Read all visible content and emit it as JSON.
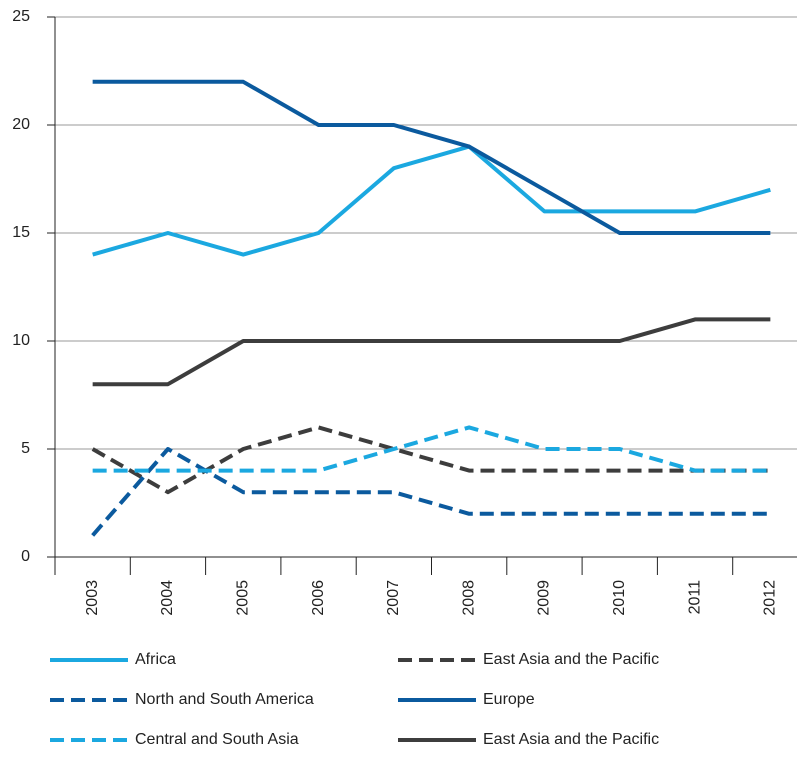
{
  "chart_data": {
    "type": "line",
    "categories": [
      "2003",
      "2004",
      "2005",
      "2006",
      "2007",
      "2008",
      "2009",
      "2010",
      "2011",
      "2012"
    ],
    "series": [
      {
        "name": "Africa",
        "color": "#1ba8e0",
        "dash": false,
        "values": [
          14,
          15,
          14,
          15,
          18,
          19,
          16,
          16,
          16,
          17
        ]
      },
      {
        "name": "East Asia and the Pacific",
        "color": "#3d3d3d",
        "dash": true,
        "values": [
          5,
          3,
          5,
          6,
          5,
          4,
          4,
          4,
          4,
          4
        ]
      },
      {
        "name": "North and South America",
        "color": "#0b5a9e",
        "dash": true,
        "values": [
          1,
          5,
          3,
          3,
          3,
          2,
          2,
          2,
          2,
          2
        ]
      },
      {
        "name": "Europe",
        "color": "#0b5a9e",
        "dash": false,
        "values": [
          22,
          22,
          22,
          20,
          20,
          19,
          17,
          15,
          15,
          15
        ]
      },
      {
        "name": "Central and South Asia",
        "color": "#1ba8e0",
        "dash": true,
        "values": [
          4,
          4,
          4,
          4,
          5,
          6,
          5,
          5,
          4,
          4
        ]
      },
      {
        "name": "East Asia and the Pacific",
        "color": "#3d3d3d",
        "dash": false,
        "values": [
          8,
          8,
          10,
          10,
          10,
          10,
          10,
          10,
          11,
          11
        ]
      }
    ],
    "ylim": [
      0,
      25
    ],
    "yticks": [
      0,
      5,
      10,
      15,
      20,
      25
    ],
    "grid": true
  }
}
